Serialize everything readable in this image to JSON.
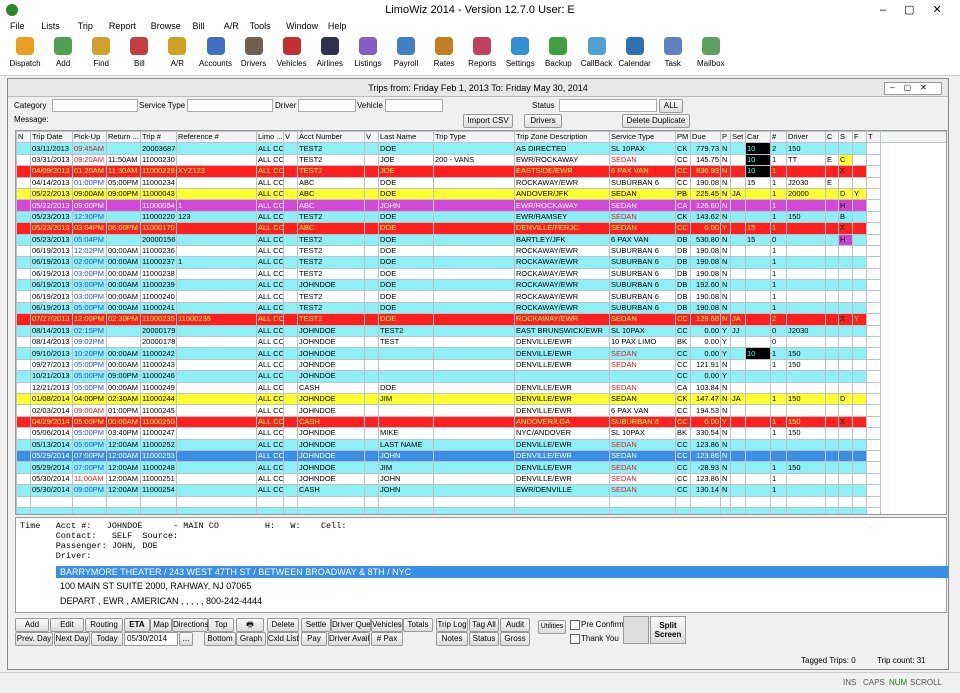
{
  "window": {
    "title": "LimoWiz 2014 - Version 12.7.0   User: E"
  },
  "menu": [
    "File",
    "Lists",
    "Trip",
    "Report",
    "Browse",
    "Bill",
    "A/R",
    "Tools",
    "Window",
    "Help"
  ],
  "toolbar": [
    "Dispatch",
    "Add",
    "Find",
    "Bill",
    "A/R",
    "Accounts",
    "Drivers",
    "Vehicles",
    "Airlines",
    "Listings",
    "Payroll",
    "Rates",
    "Reports",
    "Settings",
    "Backup",
    "CallBack",
    "Calendar",
    "Task",
    "Mailbox"
  ],
  "trips": {
    "title": "Trips from: Friday Feb 1, 2013  To: Friday May 30, 2014",
    "filters": {
      "category": "Category",
      "service_type": "Service Type",
      "driver": "Driver",
      "vehicle": "Vehicle",
      "status": "Status",
      "all": "ALL",
      "message": "Message:",
      "import_csv": "Import CSV",
      "drivers": "Drivers",
      "delete_duplicate": "Delete Duplicate"
    },
    "columns": [
      "N",
      "Trip Date",
      "Pick-Up",
      "Return ...",
      "Trip #",
      "Reference #",
      "Limo ...",
      "V",
      "Acct Number",
      "V",
      "Last Name",
      "Trip Type",
      "Trip Zone Description",
      "Service Type",
      "PM",
      "Due",
      "P",
      "Set",
      "Car",
      "#",
      "Driver",
      "C",
      "S",
      "F",
      "T"
    ],
    "row_highlight": [
      null,
      null,
      "red",
      null,
      "yellow",
      "magenta",
      null,
      "red",
      null,
      null,
      null,
      null,
      null,
      null,
      null,
      "red",
      null,
      null,
      null,
      null,
      null,
      null,
      "yellow",
      null,
      "red",
      null,
      null,
      "blue",
      null,
      null,
      null
    ],
    "rows": [
      [
        null,
        "03/11/2013",
        "09:45AM",
        null,
        "20003687",
        null,
        "ALL CC",
        null,
        "TEST2",
        null,
        "DOE",
        null,
        "AS DIRECTED",
        "SL 10PAX",
        "CK",
        "779.73",
        "N",
        null,
        "10",
        "2",
        "150",
        null,
        null,
        null,
        null
      ],
      [
        null,
        "03/31/2013",
        "09:20AM",
        "11:50AM",
        "11000230",
        null,
        "ALL CC",
        null,
        "TEST2",
        null,
        "JOE",
        "200 - VANS",
        "EWR/ROCKAWAY",
        "SEDAN",
        "CC",
        "145.75",
        "N",
        null,
        "10",
        "1",
        "TT",
        "E",
        "C",
        null,
        null
      ],
      [
        null,
        "04/09/2013",
        "01:20AM",
        "11:30AM",
        "11000228",
        "XYZ123",
        "ALL CC",
        null,
        "TEST2",
        null,
        "JOE",
        null,
        "EASTSIDE/EWR",
        "6 PAX VAN",
        "CC",
        "836.93",
        "N",
        null,
        "10",
        "1",
        null,
        null,
        "X",
        null,
        null
      ],
      [
        null,
        "04/14/2013",
        "01:00PM",
        "05:00PM",
        "11000234",
        null,
        "ALL CC",
        null,
        "ABC",
        null,
        "DOE",
        null,
        "ROCKAWAY/EWR",
        "SUBURBAN 6",
        "CC",
        "190.08",
        "N",
        null,
        "15",
        "1",
        "J2030",
        "E",
        null,
        null,
        null
      ],
      [
        null,
        "05/22/2013",
        "09:00AM",
        "09:00PM",
        "11000043",
        null,
        "ALL CC",
        null,
        "ABC",
        null,
        "DOE",
        null,
        "ANDOVER/JFK",
        "SEDAN",
        "PB",
        "225.45",
        "N",
        "JA",
        null,
        "1",
        "20000",
        null,
        "D",
        "Y",
        null
      ],
      [
        null,
        "05/22/2013",
        "09:00PM",
        null,
        "11000054",
        "1",
        "ALL CC",
        null,
        "ABC",
        null,
        "JOHN",
        null,
        "EWR/ROCKAWAY",
        "SEDAN",
        "CA",
        "126.60",
        "N",
        null,
        null,
        "1",
        null,
        null,
        "H",
        null,
        null
      ],
      [
        null,
        "05/23/2013",
        "12:30PM",
        null,
        "11000220",
        "123",
        "ALL CC",
        null,
        "TEST2",
        null,
        "DOE",
        null,
        "EWR/RAMSEY",
        "SEDAN",
        "CK",
        "143.62",
        "N",
        null,
        null,
        "1",
        "150",
        null,
        "B",
        null,
        null
      ],
      [
        null,
        "05/23/2013",
        "03:04PM",
        "06:00PM",
        "11000170",
        null,
        "ALL CC",
        null,
        "ABC",
        null,
        "DOE",
        null,
        "DENVILLE/FERJC",
        "SEDAN",
        "CC",
        "0.00",
        "Y",
        null,
        "15",
        "1",
        null,
        null,
        "X",
        null,
        null
      ],
      [
        null,
        "05/23/2013",
        "05:04PM",
        null,
        "20000156",
        null,
        "ALL CC",
        null,
        "TEST2",
        null,
        "DOE",
        null,
        "BARTLEY/JFK",
        "6 PAX VAN",
        "DB",
        "530.80",
        "N",
        null,
        "15",
        "0",
        null,
        null,
        "H",
        null,
        null
      ],
      [
        null,
        "06/19/2013",
        "12:02PM",
        "00:00AM",
        "11000236",
        null,
        "ALL CC",
        null,
        "TEST2",
        null,
        "DOE",
        null,
        "ROCKAWAY/EWR",
        "SUBURBAN 6",
        "DB",
        "190.08",
        "N",
        null,
        null,
        "1",
        null,
        null,
        null,
        null,
        null
      ],
      [
        null,
        "06/19/2013",
        "02:00PM",
        "00:00AM",
        "11000237",
        "1",
        "ALL CC",
        null,
        "TEST2",
        null,
        "DOE",
        null,
        "ROCKAWAY/EWR",
        "SUBURBAN 6",
        "DB",
        "190.08",
        "N",
        null,
        null,
        "1",
        null,
        null,
        null,
        null,
        null
      ],
      [
        null,
        "06/19/2013",
        "03:00PM",
        "00:00AM",
        "11000238",
        null,
        "ALL CC",
        null,
        "TEST2",
        null,
        "DOE",
        null,
        "ROCKAWAY/EWR",
        "SUBURBAN 6",
        "DB",
        "190.08",
        "N",
        null,
        null,
        "1",
        null,
        null,
        null,
        null,
        null
      ],
      [
        null,
        "06/19/2013",
        "03:00PM",
        "00:00AM",
        "11000239",
        null,
        "ALL CC",
        null,
        "JOHNDOE",
        null,
        "DOE",
        null,
        "ROCKAWAY/EWR",
        "SUBURBAN 6",
        "DB",
        "192.60",
        "N",
        null,
        null,
        "1",
        null,
        null,
        null,
        null,
        null
      ],
      [
        null,
        "06/19/2013",
        "03:00PM",
        "00:00AM",
        "11000240",
        null,
        "ALL CC",
        null,
        "TEST2",
        null,
        "DOE",
        null,
        "ROCKAWAY/EWR",
        "SUBURBAN 6",
        "DB",
        "190.08",
        "N",
        null,
        null,
        "1",
        null,
        null,
        null,
        null,
        null
      ],
      [
        null,
        "06/19/2013",
        "05:00PM",
        "00:00AM",
        "11000241",
        null,
        "ALL CC",
        null,
        "TEST2",
        null,
        "DOE",
        null,
        "ROCKAWAY/EWR",
        "SUBURBAN 6",
        "DB",
        "190.08",
        "N",
        null,
        null,
        "1",
        null,
        null,
        null,
        null,
        null
      ],
      [
        null,
        "07/27/2013",
        "12:00PM",
        "02:30PM",
        "11000235",
        "11000235",
        "ALL CC",
        null,
        "TEST2",
        null,
        "DOE",
        null,
        "ROCKAWAY/EWR",
        "SEDAN",
        "CC",
        "129.68",
        "N",
        "JA",
        null,
        "2",
        null,
        null,
        "X",
        "Y",
        null
      ],
      [
        null,
        "08/14/2013",
        "02:15PM",
        null,
        "20000179",
        null,
        "ALL CC",
        null,
        "JOHNDOE",
        null,
        "TEST2",
        null,
        "EAST BRUNSWICK/EWR",
        "SL 10PAX",
        "CC",
        "0.00",
        "Y",
        "JJ",
        null,
        "0",
        "J2030",
        null,
        null,
        null,
        null
      ],
      [
        null,
        "08/14/2013",
        "09:02PM",
        null,
        "20000178",
        null,
        "ALL CC",
        null,
        "JOHNDOE",
        null,
        "TEST",
        null,
        "DENVILLE/EWR",
        "10 PAX LIMO",
        "BK",
        "0.00",
        "Y",
        null,
        null,
        "0",
        null,
        null,
        null,
        null,
        null
      ],
      [
        null,
        "09/10/2013",
        "10:20PM",
        "00:00AM",
        "11000242",
        null,
        "ALL CC",
        null,
        "JOHNDOE",
        null,
        null,
        null,
        "DENVILLE/EWR",
        "SEDAN",
        "CC",
        "0.00",
        "Y",
        null,
        "10",
        "1",
        "150",
        null,
        null,
        null,
        null
      ],
      [
        null,
        "09/27/2013",
        "05:00PM",
        "00:00AM",
        "11000243",
        null,
        "ALL CC",
        null,
        "JOHNDOE",
        null,
        null,
        null,
        "DENVILLE/EWR",
        "SEDAN",
        "CC",
        "121.91",
        "N",
        null,
        null,
        "1",
        "150",
        null,
        null,
        null,
        null
      ],
      [
        null,
        "10/21/2013",
        "05:00PM",
        "09:00PM",
        "11000246",
        null,
        "ALL CC",
        null,
        "JOHNDOE",
        null,
        null,
        null,
        null,
        null,
        "CC",
        "0.00",
        "Y",
        null,
        null,
        null,
        null,
        null,
        null,
        null,
        null
      ],
      [
        null,
        "12/21/2013",
        "05:00PM",
        "00:00AM",
        "11000249",
        null,
        "ALL CC",
        null,
        "CASH",
        null,
        "DOE",
        null,
        "DENVILLE/EWR",
        "SEDAN",
        "CA",
        "103.84",
        "N",
        null,
        null,
        null,
        null,
        null,
        null,
        null,
        null
      ],
      [
        null,
        "01/08/2014",
        "04:00PM",
        "02:30AM",
        "11000244",
        null,
        "ALL CC",
        null,
        "JOHNDOE",
        null,
        "JIM",
        null,
        "DENVILLE/EWR",
        "SEDAN",
        "CK",
        "147.47",
        "N",
        "JA",
        null,
        "1",
        "150",
        null,
        "D",
        null,
        null
      ],
      [
        null,
        "02/03/2014",
        "09:00AM",
        "01:00PM",
        "11000245",
        null,
        "ALL CC",
        null,
        "JOHNDOE",
        null,
        null,
        null,
        "DENVILLE/EWR",
        "6 PAX VAN",
        "CC",
        "194.53",
        "N",
        null,
        null,
        null,
        null,
        null,
        null,
        null,
        null
      ],
      [
        null,
        "04/29/2014",
        "05:00PM",
        "00:00AM",
        "11000250",
        null,
        "ALL CC",
        null,
        "CASH",
        null,
        null,
        null,
        "ANDOVER/LGA",
        "SUBURBAN 6",
        "CC",
        "0.00",
        "Y",
        null,
        null,
        "1",
        "150",
        null,
        "X",
        null,
        null
      ],
      [
        null,
        "05/06/2014",
        "05:00PM",
        "03:40PM",
        "11000247",
        null,
        "ALL CC",
        null,
        "JOHNDOE",
        null,
        "MIKE",
        null,
        "NYC/ANDOVER",
        "SL 10PAX",
        "BK",
        "330.54",
        "N",
        null,
        null,
        "1",
        "150",
        null,
        null,
        null,
        null
      ],
      [
        null,
        "05/13/2014",
        "05:00PM",
        "12:00AM",
        "11000252",
        null,
        "ALL CC",
        null,
        "JOHNDOE",
        null,
        "LAST NAME",
        null,
        "DENVILLE/EWR",
        "SEDAN",
        "CC",
        "123.86",
        "N",
        null,
        null,
        null,
        null,
        null,
        null,
        null,
        null
      ],
      [
        null,
        "05/29/2014",
        "07:00PM",
        "12:00AM",
        "11000253",
        null,
        "ALL CC",
        null,
        "JOHNDOE",
        null,
        "JOHN",
        null,
        "DENVILLE/EWR",
        "SEDAN",
        "CC",
        "123.86",
        "N",
        null,
        null,
        null,
        null,
        null,
        null,
        null,
        null
      ],
      [
        null,
        "05/29/2014",
        "07:00PM",
        "12:00AM",
        "11000248",
        null,
        "ALL CC",
        null,
        "JOHNDOE",
        null,
        "JIM",
        null,
        "DENVILLE/EWR",
        "SEDAN",
        "CC",
        "-28.93",
        "N",
        null,
        null,
        "1",
        "150",
        null,
        null,
        null,
        null
      ],
      [
        null,
        "05/30/2014",
        "11:00AM",
        "12:00AM",
        "11000251",
        null,
        "ALL CC",
        null,
        "JOHNDOE",
        null,
        "JOHN",
        null,
        "DENVILLE/EWR",
        "SEDAN",
        "CC",
        "123.86",
        "N",
        null,
        null,
        "1",
        null,
        null,
        null,
        null,
        null
      ],
      [
        null,
        "05/30/2014",
        "09:00PM",
        "12:00AM",
        "11000254",
        null,
        "ALL CC",
        null,
        "CASH",
        null,
        "JOHN",
        null,
        "EWR/DENVILLE",
        "SEDAN",
        "CC",
        "130.14",
        "N",
        null,
        null,
        "1",
        null,
        null,
        null,
        null,
        null
      ]
    ]
  },
  "detail": {
    "lines": [
      "Time   Acct #:   JOHNDOE      - MAIN CO         H:   W:    Cell:",
      "       Contact:   SELF  Source:",
      "       Passenger: JOHN, DOE",
      "       Driver:"
    ],
    "address": "BARRYMORE THEATER / 243 WEST 47TH ST / BETWEEN BROADWAY & 8TH / NYC",
    "line2": "100 MAIN ST SUITE 2000, RAHWAY, NJ  07065",
    "line3": "DEPART , EWR , AMERICAN ,   ,   ,   ,   ,   800-242-4444"
  },
  "buttons": {
    "add": "Add",
    "edit": "Edit",
    "routing": "Routing",
    "eta": "ETA",
    "map": "Map",
    "directions": "Directions",
    "top": "Top",
    "delete": "Delete",
    "settle": "Settle",
    "driver_que": "Driver Que",
    "vehicles": "Vehicles",
    "totals": "Totals",
    "trip_log": "Trip Log",
    "tag_all": "Tag All",
    "audit": "Audit",
    "utilities": "Utilities",
    "pre_confirm": "Pre Confirm",
    "split_screen": "Split Screen",
    "prev_day": "Prev. Day",
    "next_day": "Next Day",
    "today": "Today",
    "date": "05/30/2014",
    "more": "...",
    "bottom": "Bottom",
    "graph": "Graph",
    "cxld_list": "Cxld List",
    "pay": "Pay",
    "driver_avail": "Driver Avail",
    "pax": "# Pax",
    "notes": "Notes",
    "status": "Status",
    "gross": "Gross",
    "thank_you": "Thank You"
  },
  "footer": {
    "tagged": "Tagged Trips: 0",
    "count": "Trip count: 31"
  },
  "statusbar": [
    "INS",
    "CAPS",
    "NUM",
    "SCROLL"
  ]
}
